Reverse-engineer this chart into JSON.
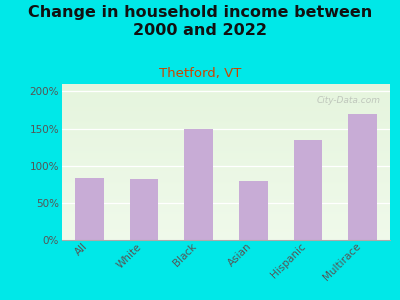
{
  "title": "Change in household income between\n2000 and 2022",
  "subtitle": "Thetford, VT",
  "categories": [
    "All",
    "White",
    "Black",
    "Asian",
    "Hispanic",
    "Multirace"
  ],
  "values": [
    83,
    82,
    150,
    79,
    135,
    170
  ],
  "bar_color": "#c8acd6",
  "background_color": "#00e8e8",
  "title_fontsize": 11.5,
  "subtitle_fontsize": 9.5,
  "tick_fontsize": 7.5,
  "ylim": [
    0,
    210
  ],
  "yticks": [
    0,
    50,
    100,
    150,
    200
  ],
  "watermark": "City-Data.com",
  "subtitle_color": "#cc4400",
  "title_color": "#111111",
  "tick_color": "#555555"
}
